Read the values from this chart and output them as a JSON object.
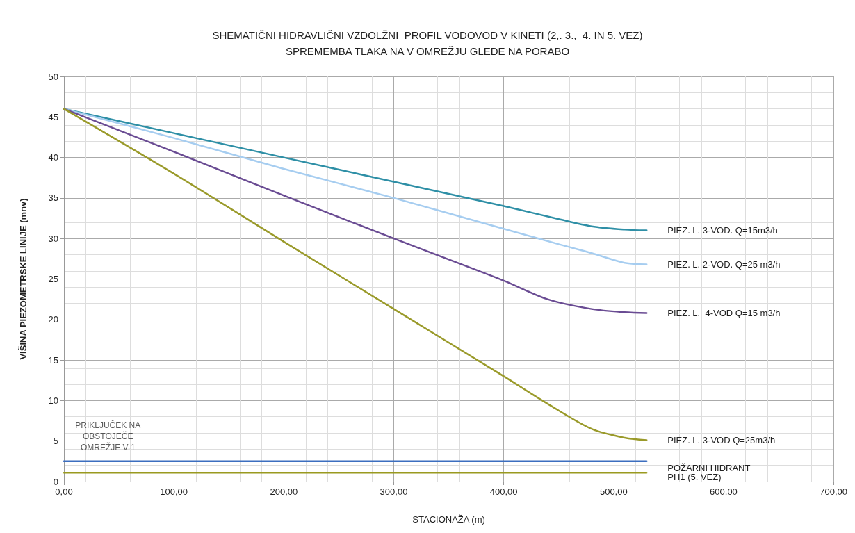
{
  "chart_data": {
    "type": "line",
    "title": "SHEMATIČNI HIDRAVLIČNI VZDOLŽNI  PROFIL VODOVOD V KINETI (2,. 3.,  4. IN 5. VEZ)",
    "subtitle": "SPREMEMBA TLAKA NA V OMREŽJU GLEDE NA PORABO",
    "xlabel": "STACIONAŽA (m)",
    "ylabel": "VIŠINA PIEZOMETRSKE LINIJE (mnv)",
    "xlim": [
      0,
      700
    ],
    "xticks": [
      {
        "value": 0,
        "label": "0,00"
      },
      {
        "value": 100,
        "label": "100,00"
      },
      {
        "value": 200,
        "label": "200,00"
      },
      {
        "value": 300,
        "label": "300,00"
      },
      {
        "value": 400,
        "label": "400,00"
      },
      {
        "value": 500,
        "label": "500,00"
      },
      {
        "value": 600,
        "label": "600,00"
      },
      {
        "value": 700,
        "label": "700,00"
      }
    ],
    "ylim": [
      0,
      50
    ],
    "yticks": [
      0,
      5,
      10,
      15,
      20,
      25,
      30,
      35,
      40,
      45,
      50
    ],
    "grid": true,
    "legend": false,
    "marker": "none",
    "line_style": "solid",
    "series": [
      {
        "name": "PIEZ. L. 3-VOD. Q=15m3/h",
        "color": "#2e8fa6",
        "x": [
          0,
          100,
          200,
          300,
          400,
          450,
          480,
          510,
          530
        ],
        "values": [
          46,
          43,
          40,
          37,
          34,
          32.4,
          31.5,
          31.1,
          31.0
        ]
      },
      {
        "name": "PIEZ. L. 2-VOD. Q=25 m3/h",
        "color": "#a6cdf0",
        "x": [
          0,
          100,
          200,
          300,
          400,
          450,
          480,
          510,
          530
        ],
        "values": [
          46,
          42.4,
          38.6,
          35,
          31.2,
          29.3,
          28.2,
          27,
          26.8
        ]
      },
      {
        "name": "PIEZ. L.  4-VOD Q=15 m3/h",
        "color": "#6a4c93",
        "x": [
          0,
          100,
          200,
          300,
          400,
          440,
          480,
          510,
          530
        ],
        "values": [
          46,
          40.7,
          35.3,
          30,
          24.8,
          22.5,
          21.3,
          20.9,
          20.8
        ]
      },
      {
        "name": "PIEZ. L. 3-VOD Q=25m3/h",
        "color": "#9a9a2a",
        "x": [
          0,
          100,
          200,
          300,
          400,
          440,
          480,
          510,
          530
        ],
        "values": [
          46,
          38,
          29.6,
          21.3,
          13,
          9.6,
          6.5,
          5.4,
          5.1
        ]
      },
      {
        "color": "#3c6ebf",
        "x": [
          0,
          530
        ],
        "values": [
          2.5,
          2.5
        ]
      },
      {
        "name": "POŽARNI HIDRANT\nPH1 (5. VEZ)",
        "color": "#9a9a20",
        "x": [
          0,
          530
        ],
        "values": [
          1.1,
          1.1
        ]
      }
    ],
    "annotations": [
      {
        "text": "PRIKLJUČEK NA\nOBSTOJEČE\nOMREŽJE V-1",
        "x": 40,
        "y": 2.5
      }
    ]
  }
}
